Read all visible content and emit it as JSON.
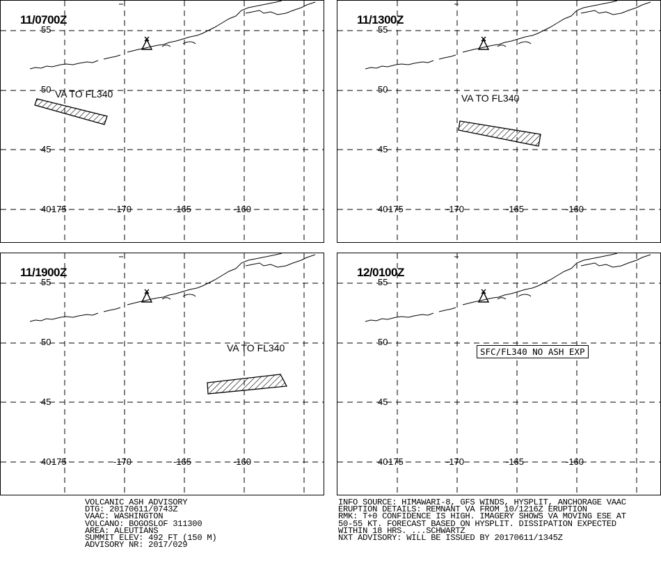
{
  "panels": [
    {
      "time": "11/0700Z",
      "va_label": "VA TO FL340",
      "no_ash": ""
    },
    {
      "time": "11/1300Z",
      "va_label": "VA TO FL340",
      "no_ash": ""
    },
    {
      "time": "11/1900Z",
      "va_label": "VA TO FL340",
      "no_ash": ""
    },
    {
      "time": "12/0100Z",
      "va_label": "",
      "no_ash": "SFC/FL340 NO ASH EXP"
    }
  ],
  "lat_labels": [
    "55",
    "50",
    "45",
    "40"
  ],
  "lon_labels": [
    "175",
    "-170",
    "-165",
    "-160"
  ],
  "advisory": {
    "line1": "VOLCANIC ASH ADVISORY",
    "line2": "DTG: 20170611/0743Z",
    "line3": "VAAC: WASHINGTON",
    "line4": "VOLCANO: BOGOSLOF 311300",
    "line5": "AREA: ALEUTIANS",
    "line6": "SUMMIT ELEV: 492 FT (150 M)",
    "line7": "ADVISORY NR: 2017/029"
  },
  "info": {
    "line1": "INFO SOURCE: HIMAWARI-8, GFS WINDS, HYSPLIT, ANCHORAGE VAAC",
    "line2": "ERUPTION DETAILS: REMNANT VA FROM 10/1216Z ERUPTION",
    "line3": "RMK: T+0 CONFIDENCE IS HIGH. IMAGERY SHOWS VA MOVING ESE AT",
    "line4": "50-55 KT. FORECAST BASED ON HYSPLIT. DISSIPATION EXPECTED",
    "line5": "WITHIN 18 HRS. ...SCHWARTZ",
    "line6": "NXT ADVISORY: WILL BE ISSUED BY 20170611/1345Z"
  }
}
